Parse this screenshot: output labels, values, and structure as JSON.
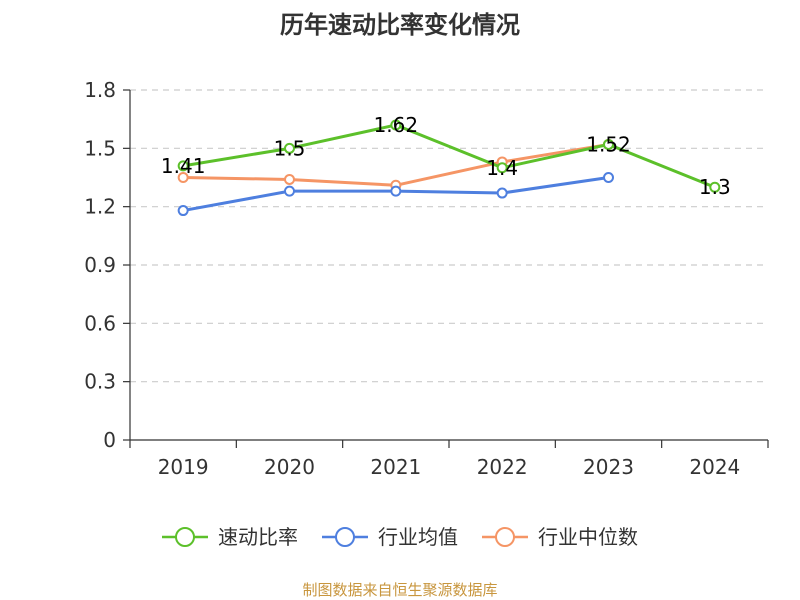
{
  "chart_data": {
    "type": "line",
    "title": "历年速动比率变化情况",
    "categories": [
      "2019",
      "2020",
      "2021",
      "2022",
      "2023",
      "2024"
    ],
    "y_ticks": [
      "0",
      "0.3",
      "0.6",
      "0.9",
      "1.2",
      "1.5",
      "1.8"
    ],
    "ylim": [
      0,
      1.8
    ],
    "grid": true,
    "legend_position": "bottom",
    "series": [
      {
        "name": "速动比率",
        "color": "#5cc02a",
        "values": [
          1.41,
          1.5,
          1.62,
          1.4,
          1.52,
          1.3
        ],
        "labels": [
          "1.41",
          "1.5",
          "1.62",
          "1.4",
          "1.52",
          "1.3"
        ]
      },
      {
        "name": "行业均值",
        "color": "#4e7fdf",
        "values": [
          1.18,
          1.28,
          1.28,
          1.27,
          1.35,
          null
        ],
        "labels": null
      },
      {
        "name": "行业中位数",
        "color": "#f59565",
        "values": [
          1.35,
          1.34,
          1.31,
          1.43,
          1.52,
          null
        ],
        "labels": null
      }
    ]
  },
  "source_text": "制图数据来自恒生聚源数据库",
  "colors": {
    "axis": "#333333",
    "grid": "#cccccc",
    "source": "#c8963e"
  }
}
